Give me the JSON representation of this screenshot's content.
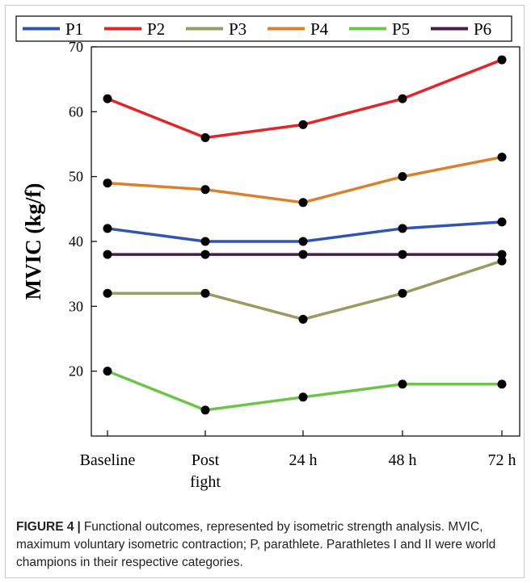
{
  "chart_data": {
    "type": "line",
    "categories": [
      "Baseline",
      "Post fight",
      "24 h",
      "48 h",
      "72 h"
    ],
    "category_lines": [
      [
        "Baseline"
      ],
      [
        "Post",
        "fight"
      ],
      [
        "24 h"
      ],
      [
        "48 h"
      ],
      [
        "72 h"
      ]
    ],
    "ylabel": "MVIC (kg/f)",
    "xlabel": "",
    "ylim": [
      10,
      70
    ],
    "yticks": [
      20,
      30,
      40,
      50,
      60,
      70
    ],
    "grid": false,
    "legend_position": "top",
    "series": [
      {
        "name": "P1",
        "color": "#2e56b0",
        "values": [
          42,
          40,
          40,
          42,
          43
        ]
      },
      {
        "name": "P2",
        "color": "#e0262a",
        "values": [
          62,
          56,
          58,
          62,
          68
        ]
      },
      {
        "name": "P3",
        "color": "#9a9a62",
        "values": [
          32,
          32,
          28,
          32,
          37
        ]
      },
      {
        "name": "P4",
        "color": "#d8812f",
        "values": [
          49,
          48,
          46,
          50,
          53
        ]
      },
      {
        "name": "P5",
        "color": "#6cc44a",
        "values": [
          20,
          14,
          16,
          18,
          18
        ]
      },
      {
        "name": "P6",
        "color": "#4a1a4e",
        "values": [
          38,
          38,
          38,
          38,
          38
        ]
      }
    ]
  },
  "caption": {
    "label": "FIGURE 4",
    "separator": "|",
    "text": "Functional outcomes, represented by isometric strength analysis. MVIC, maximum voluntary isometric contraction; P, parathlete. Parathletes I and II were world champions in their respective categories."
  }
}
